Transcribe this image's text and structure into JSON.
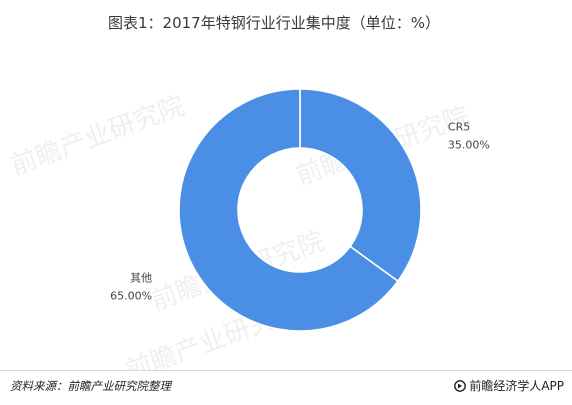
{
  "title": "图表1：2017年特钢行业行业集中度（单位：%）",
  "source": "资料来源：前瞻产业研究院整理",
  "brand": "前瞻经济学人APP",
  "watermark": "前瞻产业研究院",
  "colors": {
    "slice_fill": "#4a8ee6",
    "slice_border": "#ffffff",
    "label_text": "#444444"
  },
  "chart_data": {
    "type": "pie",
    "donut": true,
    "title": "2017年特钢行业行业集中度（单位：%）",
    "slices": [
      {
        "label": "CR5",
        "value": 35.0,
        "value_label": "35.00%"
      },
      {
        "label": "其他",
        "value": 65.0,
        "value_label": "65.00%"
      }
    ],
    "start": "top (12 o'clock), clockwise"
  }
}
